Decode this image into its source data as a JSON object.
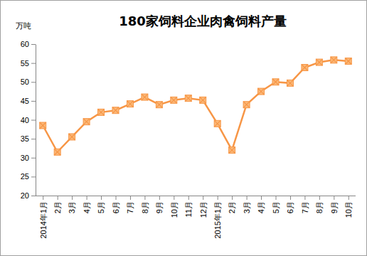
{
  "chart_data": {
    "type": "line",
    "title": "180家饲料企业肉禽饲料产量",
    "y_label": "万吨",
    "categories": [
      "2014年1月",
      "2月",
      "3月",
      "4月",
      "5月",
      "6月",
      "7月",
      "8月",
      "9月",
      "10月",
      "11月",
      "12月",
      "2015年1月",
      "2月",
      "3月",
      "4月",
      "5月",
      "6月",
      "7月",
      "8月",
      "9月",
      "10月"
    ],
    "values": [
      38.5,
      31.5,
      35.5,
      39.5,
      42,
      42.5,
      44.2,
      46,
      44,
      45.2,
      45.7,
      45.2,
      39,
      32,
      44,
      47.5,
      50,
      49.7,
      53.8,
      55.2,
      55.8,
      55.5
    ],
    "color": "#f79646",
    "marker": "square",
    "ylim": [
      20,
      60
    ],
    "yticks": [
      20,
      25,
      30,
      35,
      40,
      45,
      50,
      55,
      60
    ],
    "grid": false
  }
}
